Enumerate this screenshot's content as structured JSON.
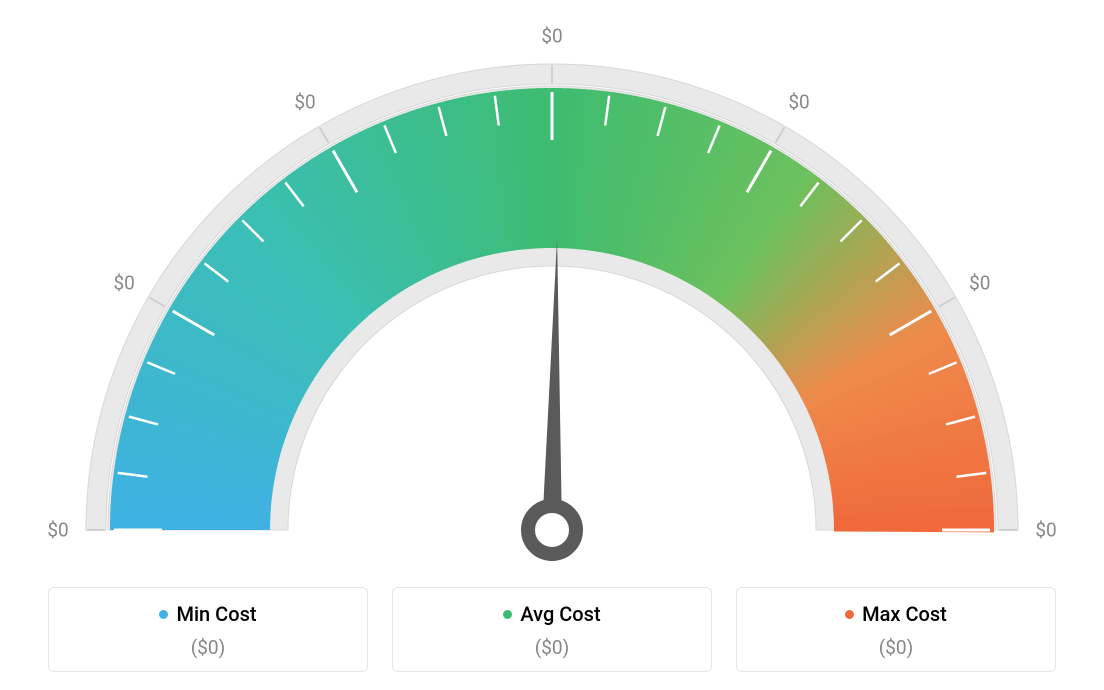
{
  "gauge": {
    "type": "gauge",
    "background_color": "#ffffff",
    "outer_track_color": "#e9e9e9",
    "outer_track_border": "#d7d7d7",
    "inner_mask_color": "#ffffff",
    "needle_color": "#5a5a5a",
    "needle_angle_deg": 91,
    "tick_color_on_color": "#ffffff",
    "tick_color_on_track": "#d0d0d0",
    "gradient_stops": [
      {
        "pct": 0,
        "color": "#3fb1e3"
      },
      {
        "pct": 25,
        "color": "#3bbfb5"
      },
      {
        "pct": 50,
        "color": "#3dbc71"
      },
      {
        "pct": 70,
        "color": "#6cc05d"
      },
      {
        "pct": 85,
        "color": "#ef8a4b"
      },
      {
        "pct": 100,
        "color": "#f0693b"
      }
    ],
    "major_labels": [
      "$0",
      "$0",
      "$0",
      "$0",
      "$0",
      "$0",
      "$0"
    ],
    "label_color": "#888888",
    "label_fontsize": 19,
    "outer_radius": 460,
    "color_band_outer": 442,
    "color_band_inner": 282,
    "track_outer": 466,
    "track_inner": 446,
    "minor_ticks_per_segment": 3
  },
  "legend": {
    "items": [
      {
        "label": "Min Cost",
        "color": "#3fb1e3",
        "value": "($0)"
      },
      {
        "label": "Avg Cost",
        "color": "#3dbc71",
        "value": "($0)"
      },
      {
        "label": "Max Cost",
        "color": "#f0693b",
        "value": "($0)"
      }
    ],
    "label_fontsize": 20,
    "value_fontsize": 19,
    "value_color": "#888888",
    "card_border_color": "#e6e6e6"
  }
}
